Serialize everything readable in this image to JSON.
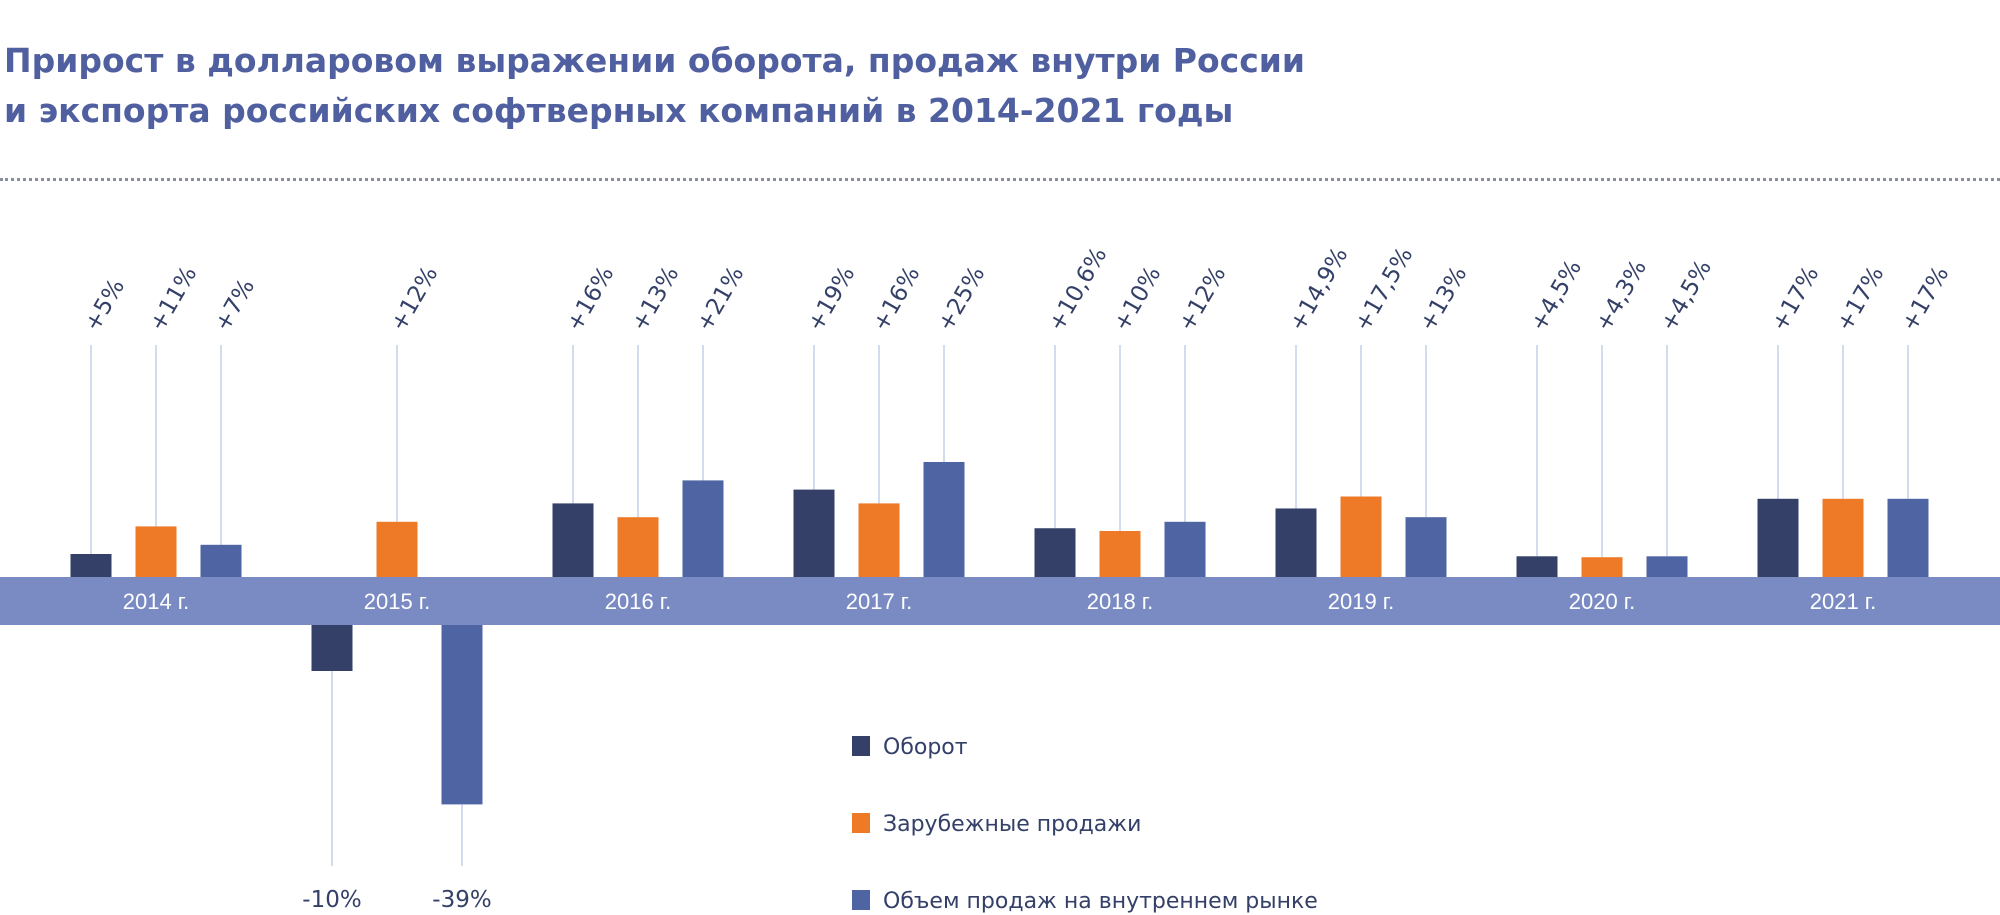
{
  "chart_data": {
    "type": "bar",
    "title_line1": "Прирост в долларовом выражении оборота, продаж внутри России",
    "title_line2": "и экспорта российских софтверных компаний в 2014-2021 годы",
    "categories": [
      "2014 г.",
      "2015 г.",
      "2016 г.",
      "2017 г.",
      "2018 г.",
      "2019 г.",
      "2020 г.",
      "2021 г."
    ],
    "series": [
      {
        "name": "Оборот",
        "color": "#344068",
        "values": [
          5,
          -10,
          16,
          19,
          10.6,
          14.9,
          4.5,
          17
        ],
        "labels": [
          "+5%",
          "-10%",
          "+16%",
          "+19%",
          "+10,6%",
          "+14,9%",
          "+4,5%",
          "+17%"
        ]
      },
      {
        "name": "Зарубежные продажи",
        "color": "#ee7a27",
        "values": [
          11,
          12,
          13,
          16,
          10,
          17.5,
          4.3,
          17
        ],
        "labels": [
          "+11%",
          "+12%",
          "+13%",
          "+16%",
          "+10%",
          "+17,5%",
          "+4,3%",
          "+17%"
        ]
      },
      {
        "name": "Объем продаж на внутреннем рынке",
        "color": "#4f64a3",
        "values": [
          7,
          -39,
          21,
          25,
          12,
          13,
          4.5,
          17
        ],
        "labels": [
          "+7%",
          "-39%",
          "+21%",
          "+25%",
          "+12%",
          "+13%",
          "+4,5%",
          "+17%"
        ]
      }
    ],
    "axis_band_color": "#7a8bc4",
    "legend_position": "bottom-center",
    "grid": false
  }
}
